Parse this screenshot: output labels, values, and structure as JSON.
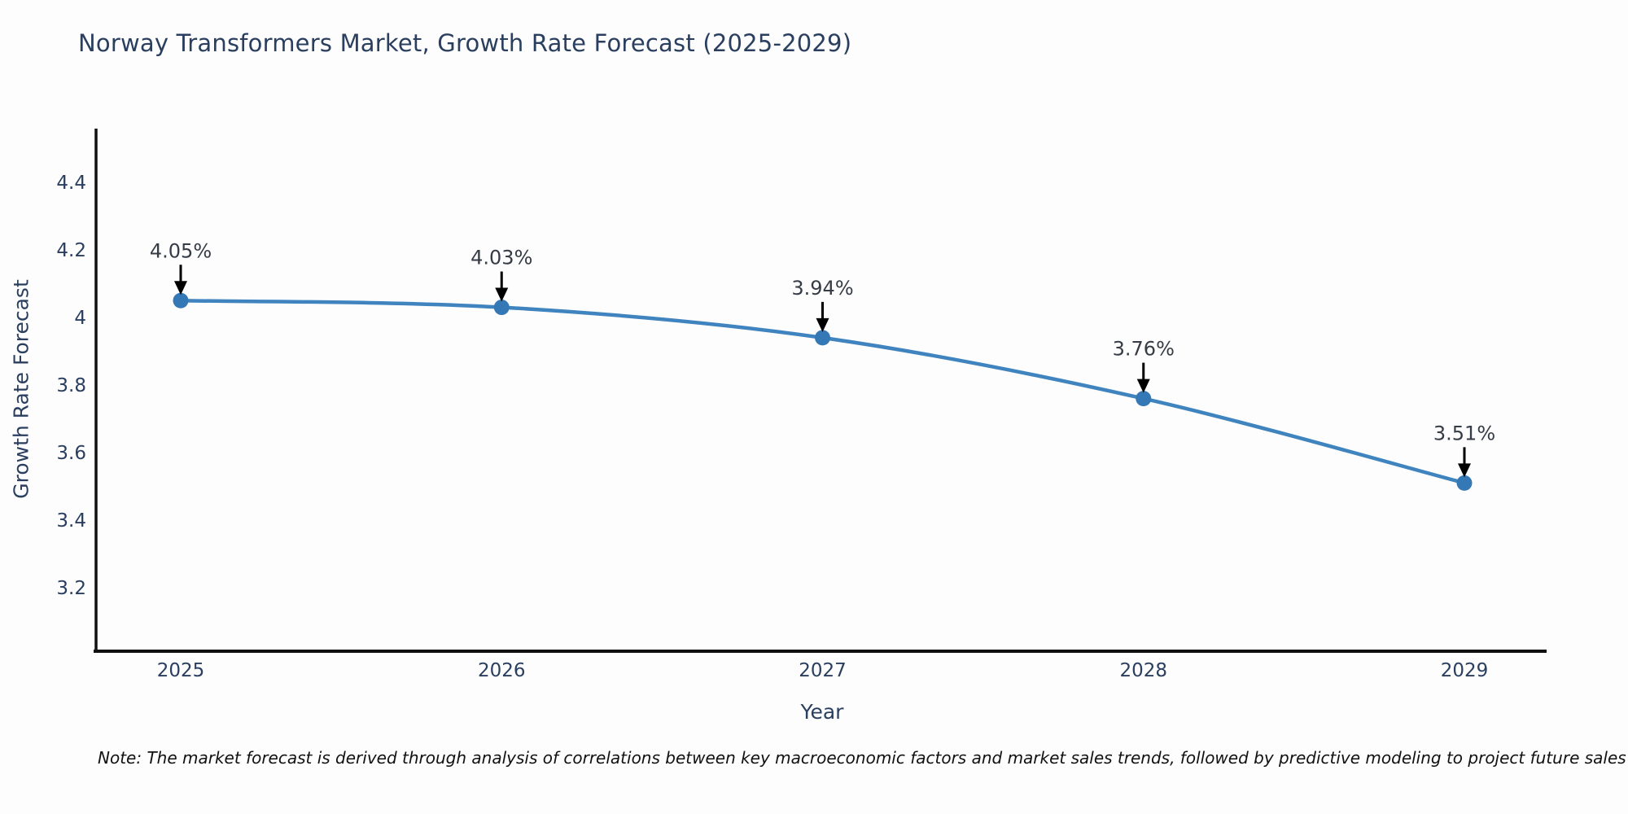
{
  "title": "Norway Transformers Market, Growth Rate Forecast (2025-2029)",
  "note": "Note: The market forecast is derived through analysis of correlations between key macroeconomic factors and market sales trends, followed by predictive modeling to project future sales",
  "chart_data": {
    "type": "line",
    "title": "Norway Transformers Market, Growth Rate Forecast (2025-2029)",
    "xlabel": "Year",
    "ylabel": "Growth Rate Forecast",
    "x": [
      2025,
      2026,
      2027,
      2028,
      2029
    ],
    "values": [
      4.05,
      4.03,
      3.94,
      3.76,
      3.51
    ],
    "point_labels": [
      "4.05%",
      "4.03%",
      "3.94%",
      "3.76%",
      "3.51%"
    ],
    "xticks": [
      "2025",
      "2026",
      "2027",
      "2028",
      "2029"
    ],
    "yticks": [
      3.2,
      3.4,
      3.6,
      3.8,
      4,
      4.2,
      4.4
    ],
    "ytick_labels": [
      "3.2",
      "3.4",
      "3.6",
      "3.8",
      "4",
      "4.2",
      "4.4"
    ],
    "xlim": [
      2024.73,
      2029.26
    ],
    "ylim": [
      3.01,
      4.55
    ],
    "grid": false,
    "legend": "none",
    "colors": {
      "line": "#3f84bf",
      "marker": "#3478b5",
      "axis_text": "#2a3f5f",
      "annotation_text": "#363c46",
      "arrow": "#000000",
      "spine": "#101010",
      "background": "#fdfdfd"
    }
  }
}
